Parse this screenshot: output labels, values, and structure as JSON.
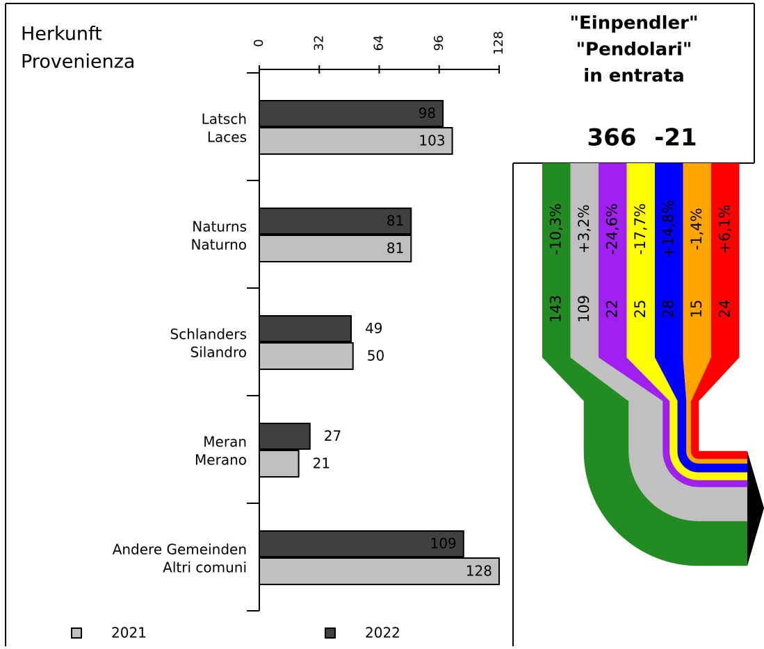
{
  "chart_data": [
    {
      "type": "bar",
      "title": [
        "Herkunft",
        "Provenienza"
      ],
      "categories": [
        [
          "Latsch",
          "Laces"
        ],
        [
          "Naturns",
          "Naturno"
        ],
        [
          "Schlanders",
          "Silandro"
        ],
        [
          "Meran",
          "Merano"
        ],
        [
          "Andere Gemeinden",
          "Altri comuni"
        ]
      ],
      "series": [
        {
          "name": "2021",
          "color": "#c0c0c0",
          "values": [
            103,
            81,
            50,
            21,
            128
          ]
        },
        {
          "name": "2022",
          "color": "#404040",
          "values": [
            98,
            81,
            49,
            27,
            109
          ]
        }
      ],
      "xlim": [
        0,
        128
      ],
      "xticks": [
        0,
        32,
        64,
        96,
        128
      ]
    },
    {
      "type": "flow",
      "title": [
        "\"Einpendler\"",
        "\"Pendolari\"",
        "in entrata"
      ],
      "total": 366,
      "total_change": -21,
      "values": [
        143,
        109,
        22,
        25,
        28,
        15,
        24
      ],
      "changes": [
        "-10,3%",
        "+3,2%",
        "-24,6%",
        "-17,7%",
        "+14,8%",
        "-1,4%",
        "+6,1%"
      ],
      "colors": [
        "#228b22",
        "#c0c0c0",
        "#a020f0",
        "#ffff00",
        "#0000ff",
        "#ffa500",
        "#ff0000"
      ]
    }
  ]
}
